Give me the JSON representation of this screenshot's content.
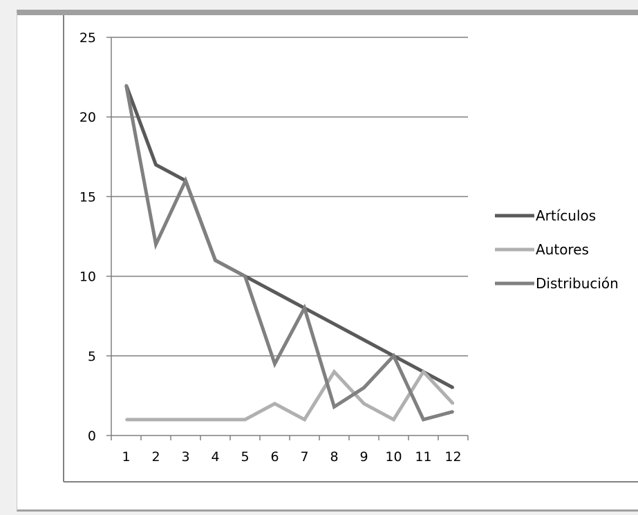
{
  "chart_data": {
    "type": "line",
    "title": "",
    "xlabel": "",
    "ylabel": "",
    "categories": [
      "1",
      "2",
      "3",
      "4",
      "5",
      "6",
      "7",
      "8",
      "9",
      "10",
      "11",
      "12"
    ],
    "ylim": [
      0,
      25
    ],
    "yticks": [
      "0",
      "5",
      "10",
      "15",
      "20",
      "25"
    ],
    "grid": true,
    "legend_position": "right",
    "series": [
      {
        "name": "Artículos",
        "color": "#5a5a5a",
        "values": [
          22,
          17,
          16,
          11,
          10,
          9,
          8,
          7,
          6,
          5,
          4,
          3
        ]
      },
      {
        "name": "Autores",
        "color": "#b0b0b0",
        "values": [
          1,
          1,
          1,
          1,
          1,
          2,
          1,
          4,
          2,
          1,
          4,
          2
        ]
      },
      {
        "name": "Distribución",
        "color": "#808080",
        "values": [
          22,
          12,
          16,
          11,
          10,
          4.5,
          8,
          1.8,
          3,
          5,
          1,
          1.5
        ]
      }
    ]
  }
}
